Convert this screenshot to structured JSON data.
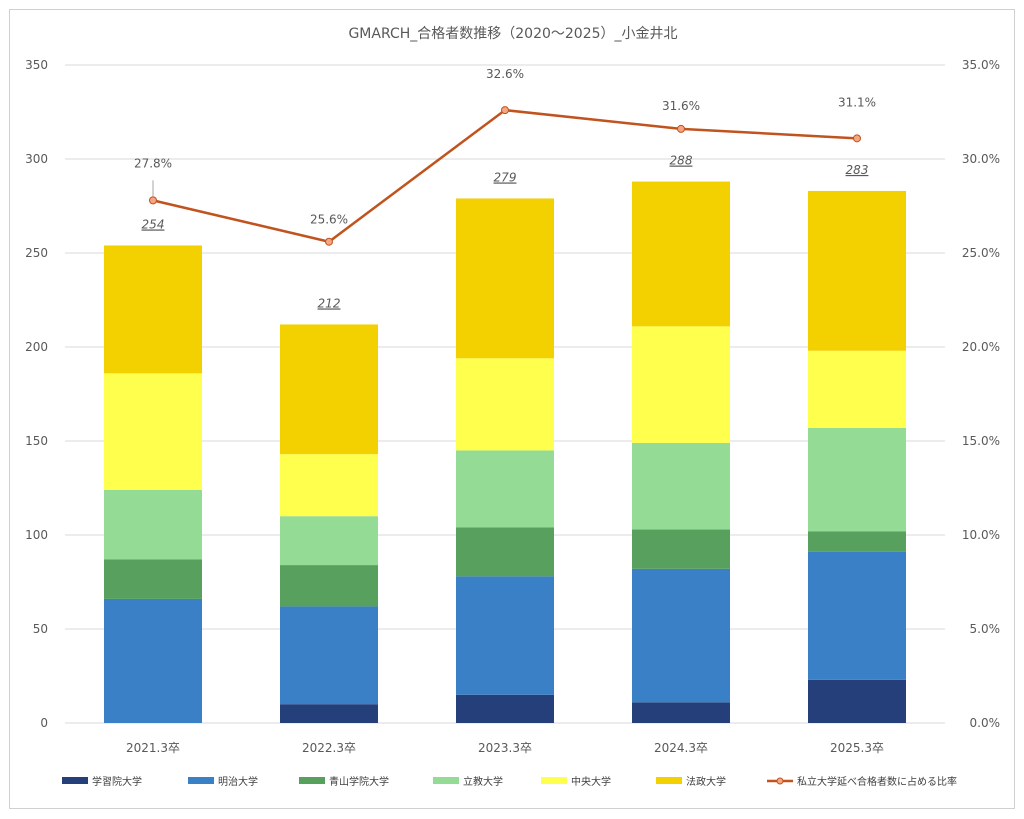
{
  "chart_data": {
    "type": "bar",
    "stacked": true,
    "title": "GMARCH_合格者数推移（2020～2025）_小金井北",
    "categories": [
      "2021.3卒",
      "2022.3卒",
      "2023.3卒",
      "2024.3卒",
      "2025.3卒"
    ],
    "ylim": [
      0,
      350
    ],
    "y_ticks": [
      "0",
      "50",
      "100",
      "150",
      "200",
      "250",
      "300",
      "350"
    ],
    "y2lim": [
      0,
      35
    ],
    "y2_ticks": [
      "0.0%",
      "5.0%",
      "10.0%",
      "15.0%",
      "20.0%",
      "25.0%",
      "30.0%",
      "35.0%"
    ],
    "grid": true,
    "legend_position": "bottom",
    "series": [
      {
        "name": "学習院大学",
        "color": "#243f7a",
        "values": [
          0,
          10,
          15,
          11,
          23
        ]
      },
      {
        "name": "明治大学",
        "color": "#3a80c6",
        "values": [
          66,
          52,
          63,
          71,
          68
        ]
      },
      {
        "name": "青山学院大学",
        "color": "#58a05e",
        "values": [
          21,
          22,
          26,
          21,
          11
        ]
      },
      {
        "name": "立教大学",
        "color": "#94db96",
        "values": [
          37,
          26,
          41,
          46,
          55
        ]
      },
      {
        "name": "中央大学",
        "color": "#ffff4d",
        "values": [
          62,
          33,
          49,
          62,
          41
        ]
      },
      {
        "name": "法政大学",
        "color": "#f3d000",
        "values": [
          68,
          69,
          85,
          77,
          85
        ]
      }
    ],
    "totals": [
      "254",
      "212",
      "279",
      "288",
      "283"
    ],
    "line_series": {
      "name": "私立大学延べ合格者数に占める比率",
      "color": "#c0531e",
      "axis": "secondary",
      "values": [
        27.8,
        25.6,
        32.6,
        31.6,
        31.1
      ],
      "labels": [
        "27.8%",
        "25.6%",
        "32.6%",
        "31.6%",
        "31.1%"
      ]
    }
  }
}
